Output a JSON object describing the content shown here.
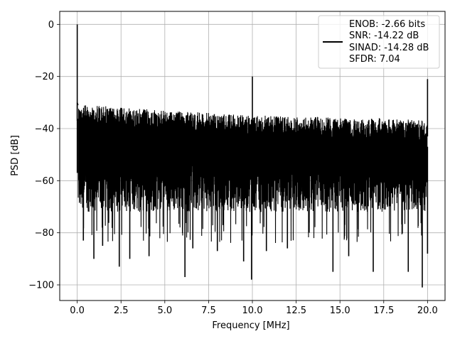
{
  "chart_data": {
    "type": "line",
    "title": "",
    "xlabel": "Frequency [MHz]",
    "ylabel": "PSD [dB]",
    "xlim": [
      -1.0,
      21.0
    ],
    "ylim": [
      -106.0,
      5.0
    ],
    "xticks": [
      0.0,
      2.5,
      5.0,
      7.5,
      10.0,
      12.5,
      15.0,
      17.5,
      20.0
    ],
    "xtick_labels": [
      "0.0",
      "2.5",
      "5.0",
      "7.5",
      "10.0",
      "12.5",
      "15.0",
      "17.5",
      "20.0"
    ],
    "yticks": [
      0,
      -20,
      -40,
      -60,
      -80,
      -100
    ],
    "ytick_labels": [
      "0",
      "−20",
      "−40",
      "−60",
      "−80",
      "−100"
    ],
    "grid": true,
    "legend_position": "top-right",
    "line_color": "#000000",
    "series": [
      {
        "legend_lines": [
          "ENOB: -2.66 bits",
          "SNR: -14.22 dB",
          "SINAD: -14.28 dB",
          "SFDR: 7.04"
        ],
        "noise_floor_top_db": [
          [
            0.1,
            -31
          ],
          [
            1.0,
            -31
          ],
          [
            2.5,
            -32
          ],
          [
            5.0,
            -33
          ],
          [
            7.5,
            -34
          ],
          [
            10.0,
            -35
          ],
          [
            12.5,
            -35
          ],
          [
            15.0,
            -36
          ],
          [
            17.5,
            -36
          ],
          [
            20.0,
            -37
          ]
        ],
        "noise_floor_band_bottom_db": -72,
        "spurs": [
          {
            "x": 0.0,
            "y": 0
          },
          {
            "x": 10.0,
            "y": -20
          },
          {
            "x": 20.0,
            "y": -21
          }
        ],
        "deep_notches": [
          {
            "x": 0.35,
            "y": -83
          },
          {
            "x": 0.95,
            "y": -90
          },
          {
            "x": 1.45,
            "y": -85
          },
          {
            "x": 2.4,
            "y": -93
          },
          {
            "x": 3.0,
            "y": -90
          },
          {
            "x": 4.1,
            "y": -89
          },
          {
            "x": 6.15,
            "y": -97
          },
          {
            "x": 6.6,
            "y": -86
          },
          {
            "x": 8.0,
            "y": -87
          },
          {
            "x": 9.5,
            "y": -91
          },
          {
            "x": 9.95,
            "y": -98
          },
          {
            "x": 10.8,
            "y": -87
          },
          {
            "x": 12.0,
            "y": -86
          },
          {
            "x": 14.6,
            "y": -95
          },
          {
            "x": 15.5,
            "y": -89
          },
          {
            "x": 16.9,
            "y": -95
          },
          {
            "x": 18.9,
            "y": -95
          },
          {
            "x": 19.7,
            "y": -101
          },
          {
            "x": 20.0,
            "y": -88
          }
        ]
      }
    ]
  }
}
